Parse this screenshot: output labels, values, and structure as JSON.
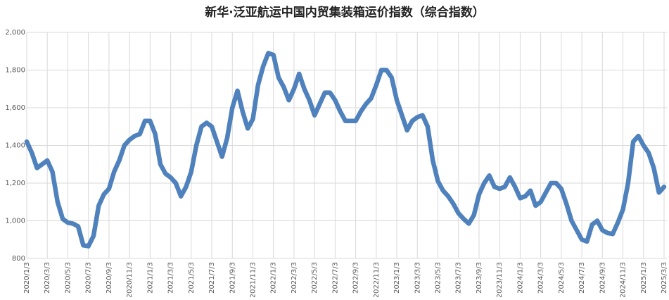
{
  "chart_data": {
    "type": "line",
    "title": "新华·泛亚航运中国内贸集装箱运价指数（综合指数）",
    "categories": [
      "2020/1/3",
      null,
      null,
      null,
      "2020/3/3",
      null,
      null,
      null,
      "2020/5/3",
      null,
      null,
      null,
      "2020/7/3",
      null,
      null,
      null,
      "2020/9/3",
      null,
      null,
      null,
      "2020/11/3",
      null,
      null,
      null,
      "2021/1/3",
      null,
      null,
      null,
      "2021/3/3",
      null,
      null,
      null,
      "2021/5/3",
      null,
      null,
      null,
      "2021/7/3",
      null,
      null,
      null,
      "2021/9/3",
      null,
      null,
      null,
      "2021/11/3",
      null,
      null,
      null,
      "2022/1/3",
      null,
      null,
      null,
      "2022/3/3",
      null,
      null,
      null,
      "2022/5/3",
      null,
      null,
      null,
      "2022/7/3",
      null,
      null,
      null,
      "2022/9/3",
      null,
      null,
      null,
      "2022/11/3",
      null,
      null,
      null,
      "2023/1/3",
      null,
      null,
      null,
      "2023/3/3",
      null,
      null,
      null,
      "2023/5/3",
      null,
      null,
      null,
      "2023/7/3",
      null,
      null,
      null,
      "2023/9/3",
      null,
      null,
      null,
      "2023/11/3",
      null,
      null,
      null,
      "2024/1/3",
      null,
      null,
      null,
      "2024/3/3",
      null,
      null,
      null,
      "2024/5/3",
      null,
      null,
      null,
      "2024/7/3",
      null,
      null,
      null,
      "2024/9/3",
      null,
      null,
      null,
      "2024/11/3",
      null,
      null,
      null,
      "2025/1/3",
      null,
      null,
      null,
      "2025/3/3"
    ],
    "series": [
      {
        "name": "综合指数",
        "color": "#4f81bd",
        "values": [
          1420,
          1360,
          1280,
          1300,
          1320,
          1260,
          1100,
          1010,
          990,
          985,
          970,
          870,
          865,
          920,
          1080,
          1140,
          1170,
          1260,
          1320,
          1400,
          1430,
          1450,
          1460,
          1530,
          1530,
          1460,
          1300,
          1250,
          1230,
          1200,
          1130,
          1180,
          1260,
          1400,
          1500,
          1520,
          1500,
          1420,
          1340,
          1440,
          1600,
          1690,
          1580,
          1490,
          1540,
          1720,
          1820,
          1890,
          1880,
          1760,
          1710,
          1640,
          1700,
          1780,
          1700,
          1640,
          1560,
          1620,
          1680,
          1680,
          1640,
          1580,
          1530,
          1530,
          1530,
          1580,
          1620,
          1650,
          1720,
          1800,
          1800,
          1760,
          1640,
          1560,
          1480,
          1530,
          1550,
          1560,
          1500,
          1320,
          1210,
          1160,
          1130,
          1090,
          1040,
          1010,
          985,
          1030,
          1140,
          1200,
          1240,
          1180,
          1170,
          1180,
          1230,
          1180,
          1120,
          1130,
          1160,
          1080,
          1100,
          1150,
          1200,
          1200,
          1170,
          1090,
          1000,
          950,
          900,
          890,
          980,
          1000,
          950,
          935,
          930,
          990,
          1060,
          1200,
          1420,
          1450,
          1400,
          1360,
          1280,
          1150,
          1180
        ]
      }
    ],
    "ylim": [
      800,
      2000
    ],
    "yticks": [
      800,
      {
        "value": 1000,
        "label": "1,000"
      },
      {
        "value": 1200,
        "label": "1,200"
      },
      {
        "value": 1400,
        "label": "1,400"
      },
      {
        "value": 1600,
        "label": "1,600"
      },
      {
        "value": 1800,
        "label": "1,800"
      },
      {
        "value": 2000,
        "label": "2,000"
      }
    ],
    "grid": true
  }
}
